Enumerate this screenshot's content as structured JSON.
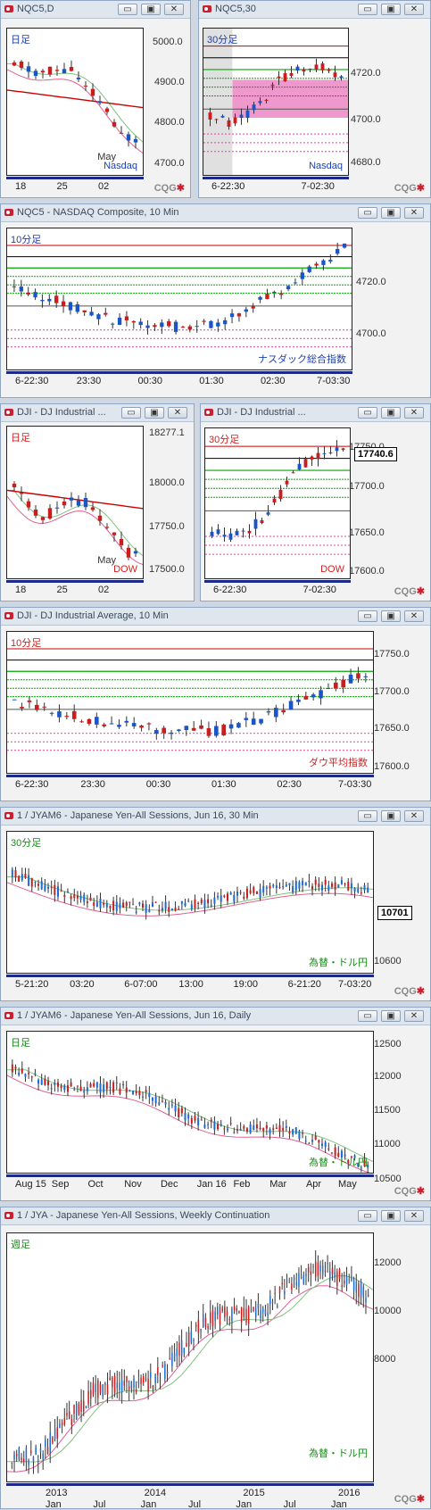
{
  "windows": [
    {
      "title": "NQC5,D",
      "subtitle": "日足",
      "index": "Nasdaq",
      "subtitle_color": "#1d3fb0",
      "index_color": "#1d3fb0",
      "yticks": [
        "5000.0",
        "4900.0",
        "4800.0",
        "4700.0"
      ],
      "xticks": [
        "18",
        "25",
        "02"
      ],
      "extra": "May"
    },
    {
      "title": "NQC5,30",
      "subtitle": "30分足",
      "index": "Nasdaq",
      "subtitle_color": "#1d3fb0",
      "index_color": "#1d3fb0",
      "yticks": [
        "4720.0",
        "4700.0",
        "4680.0"
      ],
      "xticks": [
        "6-22:30",
        "7-02:30"
      ]
    },
    {
      "title": "NQC5 - NASDAQ Composite, 10 Min",
      "subtitle": "10分足",
      "index": "ナスダック総合指数",
      "subtitle_color": "#1d3fb0",
      "index_color": "#1d3fb0",
      "yticks": [
        "4720.0",
        "4700.0"
      ],
      "xticks": [
        "6-22:30",
        "23:30",
        "00:30",
        "01:30",
        "02:30",
        "7-03:30"
      ]
    },
    {
      "title": "DJI - DJ Industrial ...",
      "subtitle": "日足",
      "index": "DOW",
      "subtitle_color": "#d02020",
      "index_color": "#d02020",
      "yticks": [
        "18277.1",
        "18000.0",
        "17750.0",
        "17500.0"
      ],
      "xticks": [
        "18",
        "25",
        "02"
      ],
      "extra": "May"
    },
    {
      "title": "DJI - DJ Industrial ...",
      "subtitle": "30分足",
      "index": "DOW",
      "subtitle_color": "#d02020",
      "index_color": "#d02020",
      "yticks": [
        "17750.0",
        "17700.0",
        "17650.0",
        "17600.0"
      ],
      "xticks": [
        "6-22:30",
        "7-02:30"
      ],
      "price": "17740.6"
    },
    {
      "title": "DJI - DJ Industrial Average, 10 Min",
      "subtitle": "10分足",
      "index": "ダウ平均指数",
      "subtitle_color": "#d02020",
      "index_color": "#d02020",
      "yticks": [
        "17750.0",
        "17700.0",
        "17650.0",
        "17600.0"
      ],
      "xticks": [
        "6-22:30",
        "23:30",
        "00:30",
        "01:30",
        "02:30",
        "7-03:30"
      ]
    },
    {
      "title": "1 / JYAM6 - Japanese Yen-All Sessions, Jun 16, 30 Min",
      "subtitle": "30分足",
      "index": "為替・ドル円",
      "subtitle_color": "#1a8a1a",
      "index_color": "#1a8a1a",
      "yticks": [
        "10600"
      ],
      "xticks": [
        "5-21:20",
        "03:20",
        "6-07:00",
        "13:00",
        "19:00",
        "6-21:20",
        "7-03:20"
      ],
      "price": "10701"
    },
    {
      "title": "1 / JYAM6 - Japanese Yen-All Sessions, Jun 16, Daily",
      "subtitle": "日足",
      "index": "為替・ドル円",
      "subtitle_color": "#1a8a1a",
      "index_color": "#1a8a1a",
      "yticks": [
        "12500",
        "12000",
        "11500",
        "11000",
        "10500"
      ],
      "xticks": [
        "Aug 15",
        "Sep",
        "Oct",
        "Nov",
        "Dec",
        "Jan 16",
        "Feb",
        "Mar",
        "Apr",
        "May"
      ]
    },
    {
      "title": "1 / JYA - Japanese Yen-All Sessions, Weekly Continuation",
      "subtitle": "週足",
      "index": "為替・ドル円",
      "subtitle_color": "#1a8a1a",
      "index_color": "#1a8a1a",
      "yticks": [
        "12000",
        "10000",
        "8000"
      ],
      "xticks": [
        "2013",
        "2014",
        "2015",
        "2016"
      ],
      "xticks2": [
        "Jan",
        "Jul",
        "Jan",
        "Jul",
        "Jan",
        "Jul",
        "Jan"
      ]
    }
  ],
  "buttons": {
    "min": "▭",
    "max": "▣",
    "close": "✕"
  },
  "logo": {
    "a": "CQG",
    "b": "✱"
  }
}
